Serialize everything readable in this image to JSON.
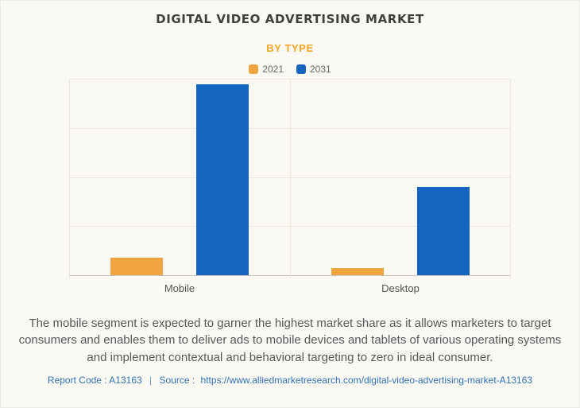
{
  "header": {
    "title": "DIGITAL VIDEO ADVERTISING MARKET",
    "subtitle": "BY TYPE"
  },
  "chart_data": {
    "type": "bar",
    "categories": [
      "Mobile",
      "Desktop"
    ],
    "series": [
      {
        "name": "2021",
        "color": "#efa440",
        "values": [
          9,
          3.5
        ]
      },
      {
        "name": "2031",
        "color": "#1565c0",
        "values": [
          97,
          45
        ]
      }
    ],
    "title": "DIGITAL VIDEO ADVERTISING MARKET",
    "subtitle": "BY TYPE",
    "xlabel": "",
    "ylabel": "",
    "ylim": [
      0,
      100
    ],
    "grid": true,
    "legend_position": "top-center"
  },
  "description": "The mobile segment is expected to garner the highest market share as it allows marketers to target consumers and enables them to deliver ads to mobile devices and tablets of various operating systems and implement contextual and behavioral targeting to zero in ideal consumer.",
  "footer": {
    "report_code": "Report Code : A13163",
    "separator": "|",
    "source_prefix": "Source :",
    "url": "https://www.alliedmarketresearch.com/digital-video-advertising-market-A13163"
  }
}
